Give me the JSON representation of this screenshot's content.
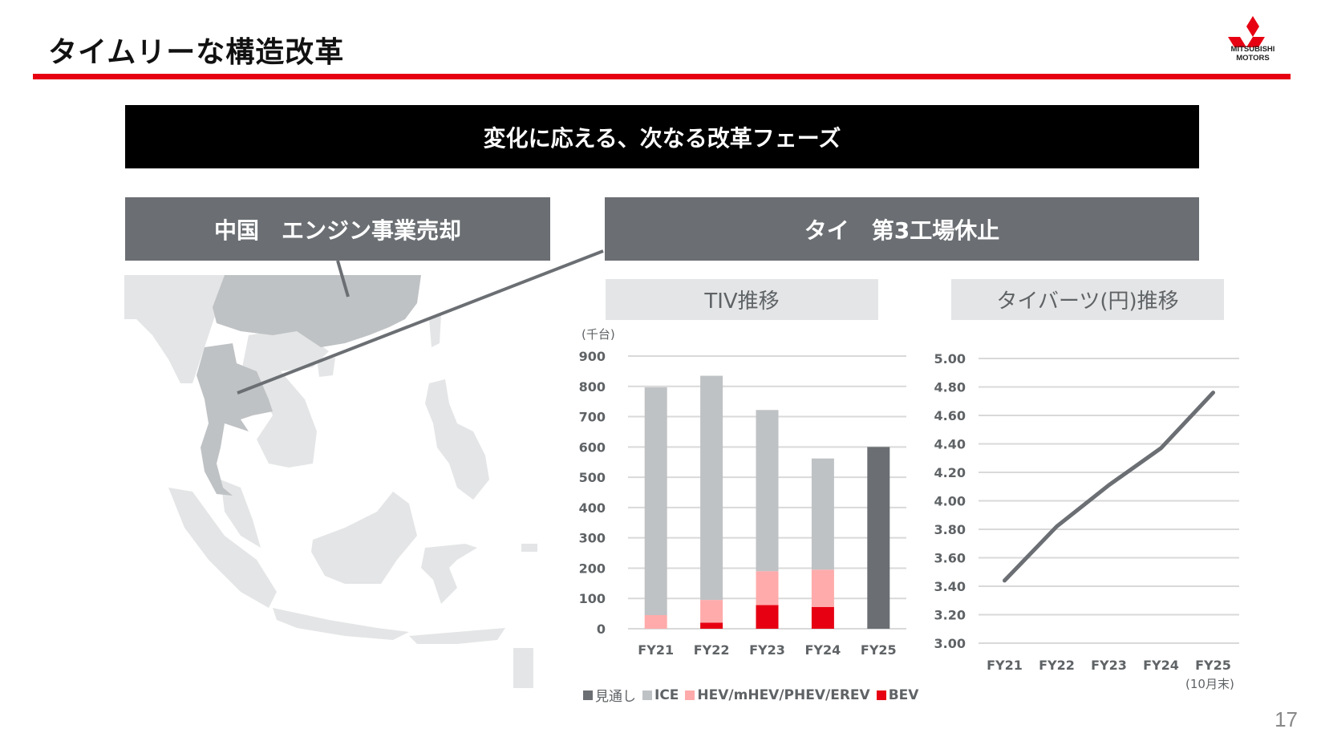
{
  "page": {
    "title": "タイムリーな構造改革",
    "page_number": "17",
    "accent_color": "#e60012"
  },
  "logo": {
    "line1": "MITSUBISHI",
    "line2": "MOTORS",
    "icon": "three-diamonds-icon"
  },
  "banner": {
    "text": "変化に応える、次なる改革フェーズ"
  },
  "boxes": {
    "china": "中国　エンジン事業売却",
    "thailand": "タイ　第3工場休止"
  },
  "subtitles": {
    "tiv": "TIV推移",
    "baht": "タイバーツ(円)推移"
  },
  "tiv_chart": {
    "unit": "(千台)",
    "legend": [
      {
        "label": "見通し",
        "color": "#6b6f73"
      },
      {
        "label": "ICE",
        "color": "#bfc2c4"
      },
      {
        "label": "HEV/mHEV/PHEV/EREV",
        "color": "#ffabab"
      },
      {
        "label": "BEV",
        "color": "#e60012"
      }
    ]
  },
  "baht_chart": {
    "fy25_note": "(10月末)"
  },
  "chart_data": [
    {
      "type": "bar",
      "stacked": true,
      "title": "TIV推移",
      "ylabel": "(千台)",
      "categories": [
        "FY21",
        "FY22",
        "FY23",
        "FY24",
        "FY25"
      ],
      "ylim": [
        0,
        900
      ],
      "yticks": [
        0,
        100,
        200,
        300,
        400,
        500,
        600,
        700,
        800,
        900
      ],
      "grid": true,
      "legend_position": "bottom",
      "series": [
        {
          "name": "BEV",
          "color": "#e60012",
          "values": [
            0,
            20,
            78,
            72,
            0
          ]
        },
        {
          "name": "HEV/mHEV/PHEV/EREV",
          "color": "#ffabab",
          "values": [
            45,
            75,
            112,
            123,
            0
          ]
        },
        {
          "name": "ICE",
          "color": "#bfc2c4",
          "values": [
            752,
            740,
            532,
            367,
            0
          ]
        },
        {
          "name": "見通し",
          "color": "#6b6f73",
          "values": [
            0,
            0,
            0,
            0,
            600
          ]
        }
      ],
      "totals": [
        797,
        835,
        722,
        562,
        600
      ]
    },
    {
      "type": "line",
      "title": "タイバーツ(円)推移",
      "categories": [
        "FY21",
        "FY22",
        "FY23",
        "FY24",
        "FY25"
      ],
      "x_note": "FY25 (10月末)",
      "ylim": [
        3.0,
        5.0
      ],
      "yticks": [
        "3.00",
        "3.20",
        "3.40",
        "3.60",
        "3.80",
        "4.00",
        "4.20",
        "4.40",
        "4.60",
        "4.80",
        "5.00"
      ],
      "grid": true,
      "series": [
        {
          "name": "タイバーツ(円)",
          "color": "#6b6f73",
          "values": [
            3.44,
            3.82,
            4.11,
            4.37,
            4.76
          ]
        }
      ]
    }
  ]
}
